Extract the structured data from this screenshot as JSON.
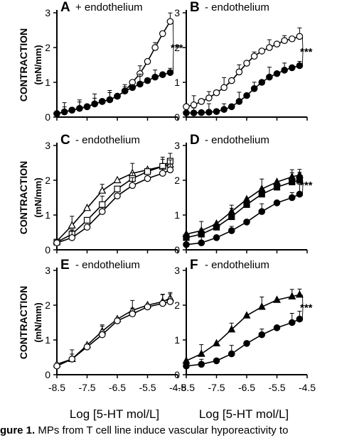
{
  "figure": {
    "ylabel": "CONTRACTION",
    "ylabel_unit": "(mN/mm)",
    "xlabel": "Log [5-HT mol/L]",
    "significance": "***"
  },
  "caption": {
    "label": "gure 1.",
    "text": " MPs from T cell line induce vascular hyporeactivity to"
  },
  "chart_data": [
    {
      "type": "line",
      "panel": "A",
      "title": "+ endothelium",
      "xlim": [
        -8.5,
        -4.5
      ],
      "ylim": [
        0,
        3
      ],
      "xticks": [
        "-8.5",
        "-7.5",
        "-6.5",
        "-5.5",
        "-4.5"
      ],
      "yticks": [
        "0",
        "1",
        "2",
        "3"
      ],
      "x": [
        -8.5,
        -8.25,
        -8.0,
        -7.75,
        -7.5,
        -7.25,
        -7.0,
        -6.75,
        -6.5,
        -6.25,
        -6.0,
        -5.75,
        -5.5,
        -5.25,
        -5.0,
        -4.75
      ],
      "series": [
        {
          "marker": "open-circle",
          "values": [
            0.1,
            0.15,
            0.2,
            0.25,
            0.3,
            0.38,
            0.45,
            0.5,
            0.6,
            0.75,
            1.0,
            1.25,
            1.6,
            2.0,
            2.4,
            2.75
          ]
        },
        {
          "marker": "filled-circle",
          "values": [
            0.1,
            0.15,
            0.2,
            0.25,
            0.3,
            0.38,
            0.45,
            0.5,
            0.6,
            0.75,
            0.85,
            0.95,
            1.05,
            1.15,
            1.22,
            1.28
          ]
        }
      ],
      "annotation": "***"
    },
    {
      "type": "line",
      "panel": "B",
      "title": "- endothelium",
      "xlim": [
        -8.5,
        -4.5
      ],
      "ylim": [
        0,
        3
      ],
      "xticks": [
        "-8.5",
        "-7.5",
        "-6.5",
        "-5.5",
        "-4.5"
      ],
      "yticks": [
        "0",
        "1",
        "2",
        "3"
      ],
      "x": [
        -8.5,
        -8.25,
        -8.0,
        -7.75,
        -7.5,
        -7.25,
        -7.0,
        -6.75,
        -6.5,
        -6.25,
        -6.0,
        -5.75,
        -5.5,
        -5.25,
        -5.0,
        -4.75
      ],
      "series": [
        {
          "marker": "open-circle",
          "values": [
            0.3,
            0.35,
            0.45,
            0.55,
            0.7,
            0.85,
            1.05,
            1.3,
            1.55,
            1.75,
            1.9,
            2.0,
            2.1,
            2.2,
            2.25,
            2.32
          ]
        },
        {
          "marker": "filled-circle",
          "values": [
            0.12,
            0.12,
            0.13,
            0.14,
            0.16,
            0.22,
            0.3,
            0.45,
            0.62,
            0.82,
            1.0,
            1.15,
            1.25,
            1.35,
            1.42,
            1.48
          ]
        }
      ],
      "annotation": "***"
    },
    {
      "type": "line",
      "panel": "C",
      "title": "- endothelium",
      "xlim": [
        -8.5,
        -4.5
      ],
      "ylim": [
        0,
        3
      ],
      "xticks": [
        "-8.5",
        "-7.5",
        "-6.5",
        "-5.5",
        "-4.5"
      ],
      "yticks": [
        "0",
        "1",
        "2",
        "3"
      ],
      "x": [
        -8.5,
        -8.0,
        -7.5,
        -7.0,
        -6.5,
        -6.0,
        -5.5,
        -5.0,
        -4.75
      ],
      "series": [
        {
          "marker": "open-triangle",
          "values": [
            0.25,
            0.7,
            1.2,
            1.7,
            2.0,
            2.2,
            2.3,
            2.4,
            2.45
          ]
        },
        {
          "marker": "open-square",
          "values": [
            0.22,
            0.45,
            0.85,
            1.3,
            1.75,
            2.05,
            2.25,
            2.4,
            2.55
          ]
        },
        {
          "marker": "open-circle",
          "values": [
            0.2,
            0.35,
            0.65,
            1.1,
            1.55,
            1.85,
            2.05,
            2.2,
            2.3
          ]
        }
      ]
    },
    {
      "type": "line",
      "panel": "D",
      "title": "- endothelium",
      "xlim": [
        -8.5,
        -4.5
      ],
      "ylim": [
        0,
        3
      ],
      "xticks": [
        "-8.5",
        "-7.5",
        "-6.5",
        "-5.5",
        "-4.5"
      ],
      "yticks": [
        "0",
        "1",
        "2",
        "3"
      ],
      "x": [
        -8.5,
        -8.0,
        -7.5,
        -7.0,
        -6.5,
        -6.0,
        -5.5,
        -5.0,
        -4.75
      ],
      "series": [
        {
          "marker": "filled-triangle",
          "values": [
            0.45,
            0.55,
            0.75,
            1.1,
            1.45,
            1.75,
            1.95,
            2.1,
            2.15
          ]
        },
        {
          "marker": "filled-square",
          "values": [
            0.35,
            0.45,
            0.65,
            0.95,
            1.3,
            1.6,
            1.8,
            1.95,
            2.0
          ]
        },
        {
          "marker": "filled-circle",
          "values": [
            0.15,
            0.2,
            0.35,
            0.55,
            0.8,
            1.1,
            1.35,
            1.5,
            1.6
          ]
        }
      ],
      "annotation": "***"
    },
    {
      "type": "line",
      "panel": "E",
      "title": "- endothelium",
      "xlim": [
        -8.5,
        -4.5
      ],
      "ylim": [
        0,
        3
      ],
      "xticks": [
        "-8.5",
        "-7.5",
        "-6.5",
        "-5.5",
        "-4.5"
      ],
      "yticks": [
        "0",
        "1",
        "2",
        "3"
      ],
      "x": [
        -8.5,
        -8.0,
        -7.5,
        -7.0,
        -6.5,
        -6.0,
        -5.5,
        -5.0,
        -4.75
      ],
      "series": [
        {
          "marker": "open-triangle",
          "values": [
            0.3,
            0.45,
            0.85,
            1.25,
            1.6,
            1.85,
            2.0,
            2.1,
            2.2
          ]
        },
        {
          "marker": "open-circle",
          "values": [
            0.25,
            0.45,
            0.8,
            1.15,
            1.55,
            1.75,
            1.95,
            2.05,
            2.1
          ]
        }
      ]
    },
    {
      "type": "line",
      "panel": "F",
      "title": "- endothelium",
      "xlim": [
        -8.5,
        -4.5
      ],
      "ylim": [
        0,
        3
      ],
      "xticks": [
        "-8.5",
        "-7.5",
        "-6.5",
        "-5.5",
        "-4.5"
      ],
      "yticks": [
        "0",
        "1",
        "2",
        "3"
      ],
      "x": [
        -8.5,
        -8.0,
        -7.5,
        -7.0,
        -6.5,
        -6.0,
        -5.5,
        -5.0,
        -4.75
      ],
      "series": [
        {
          "marker": "filled-triangle",
          "values": [
            0.4,
            0.6,
            0.9,
            1.3,
            1.7,
            1.95,
            2.15,
            2.25,
            2.3
          ]
        },
        {
          "marker": "filled-circle",
          "values": [
            0.25,
            0.3,
            0.4,
            0.6,
            0.9,
            1.15,
            1.35,
            1.5,
            1.6
          ]
        }
      ],
      "annotation": "***"
    }
  ]
}
